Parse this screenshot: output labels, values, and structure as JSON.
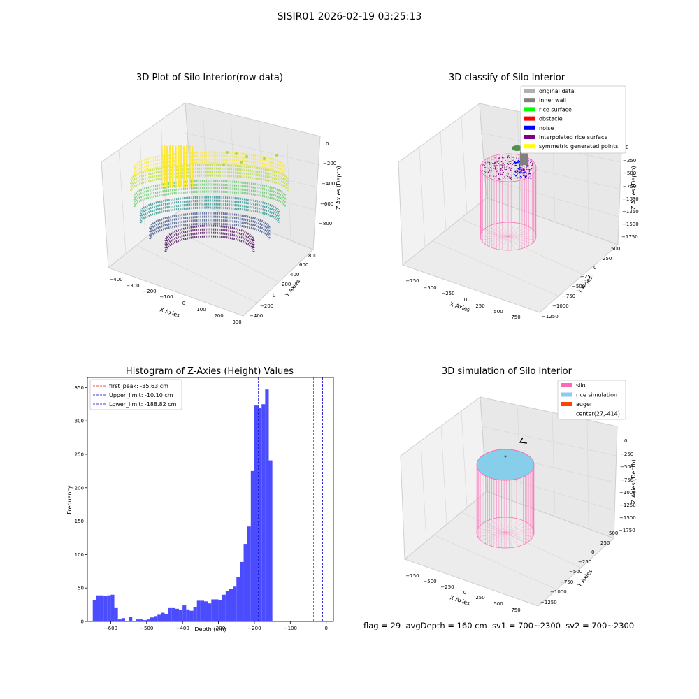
{
  "suptitle": "SISIR01 2026-02-19 03:25:13",
  "status_text": "flag = 29  avgDepth = 160 cm  sv1 = 700~2300  sv2 = 700~2300",
  "colors": {
    "hist_bar": "#4c4cff",
    "first_peak": "#e31a1c",
    "limits": "#0000cc",
    "silo_pink": "#ff69b4",
    "rice_blue": "#87ceeb",
    "auger": "#ff4500"
  },
  "chart_data": [
    {
      "type": "scatter",
      "title": "3D Plot of Silo Interior(row data)",
      "xlabel": "X Axies",
      "ylabel": "Y Axies",
      "zlabel": "Z Axies (Depth)",
      "x_ticks": [
        "−400",
        "−300",
        "−200",
        "−100",
        "0",
        "100",
        "200",
        "300"
      ],
      "y_ticks": [
        "−400",
        "−200",
        "0",
        "200",
        "400",
        "600",
        "800"
      ],
      "z_ticks": [
        "0",
        "−200",
        "−400",
        "−600",
        "−800"
      ],
      "colormap": "viridis"
    },
    {
      "type": "scatter",
      "title": "3D classify of Silo Interior",
      "xlabel": "X Axies",
      "ylabel": "Y Axies",
      "zlabel": "Z Axies (Depth)",
      "x_ticks": [
        "−750",
        "−500",
        "−250",
        "0",
        "250",
        "500",
        "750"
      ],
      "y_ticks": [
        "−1250",
        "−1000",
        "−750",
        "−500",
        "−250",
        "0",
        "250",
        "500"
      ],
      "z_ticks": [
        "0",
        "−250",
        "−500",
        "−750",
        "−1000",
        "−1250",
        "−1500",
        "−1750"
      ],
      "legend": [
        {
          "label": "original data",
          "color": "#b0b0b0"
        },
        {
          "label": "inner wall",
          "color": "#808080"
        },
        {
          "label": "rice surface",
          "color": "#00ff00"
        },
        {
          "label": "obstacle",
          "color": "#ff0000"
        },
        {
          "label": "noise",
          "color": "#0000ff"
        },
        {
          "label": "interpolated rice surface",
          "color": "#800080"
        },
        {
          "label": "symmetric generated points",
          "color": "#ffff00"
        }
      ],
      "legend_position": "top-right"
    },
    {
      "type": "bar",
      "title": "Histogram of Z-Axies (Height) Values",
      "xlabel": "Depth (cm)",
      "ylabel": "Frequency",
      "xlim": [
        -665,
        20
      ],
      "ylim": [
        0,
        365
      ],
      "x_ticks": [
        -600,
        -500,
        -400,
        -300,
        -200,
        -100,
        0
      ],
      "y_ticks": [
        0,
        50,
        100,
        150,
        200,
        250,
        300,
        350
      ],
      "bin_start": -650,
      "bin_width": 10,
      "values": [
        32,
        39,
        39,
        38,
        39,
        40,
        20,
        3,
        5,
        1,
        7,
        1,
        3,
        3,
        2,
        3,
        6,
        8,
        10,
        13,
        11,
        20,
        20,
        19,
        17,
        24,
        18,
        16,
        22,
        31,
        31,
        30,
        27,
        33,
        33,
        32,
        40,
        45,
        49,
        52,
        66,
        89,
        116,
        142,
        225,
        323,
        319,
        325,
        347,
        241
      ],
      "vlines": [
        {
          "label": "first_peak: -35.63 cm",
          "x": -35.63,
          "color": "#e31a1c"
        },
        {
          "label": "Upper_limit: -10.10 cm",
          "x": -10.1,
          "color": "#0000cc"
        },
        {
          "label": "Lower_limit: -188.82 cm",
          "x": -188.82,
          "color": "#0000cc"
        }
      ],
      "legend_position": "top-left"
    },
    {
      "type": "scatter",
      "title": "3D simulation of Silo Interior",
      "xlabel": "X Axies",
      "ylabel": "Y Axies",
      "zlabel": "Z Axies (Depth)",
      "x_ticks": [
        "−750",
        "−500",
        "−250",
        "0",
        "250",
        "500",
        "750"
      ],
      "y_ticks": [
        "−1250",
        "−1000",
        "−750",
        "−500",
        "−250",
        "0",
        "250",
        "500"
      ],
      "z_ticks": [
        "0",
        "−250",
        "−500",
        "−750",
        "−1000",
        "−1250",
        "−1500",
        "−1750"
      ],
      "legend": [
        {
          "label": "silo",
          "color": "#ff69b4"
        },
        {
          "label": "rice simulation",
          "color": "#87ceeb"
        },
        {
          "label": "auger",
          "color": "#ff4500"
        },
        {
          "label": "center(27,-414)",
          "color": ""
        }
      ],
      "legend_position": "top-right"
    }
  ]
}
